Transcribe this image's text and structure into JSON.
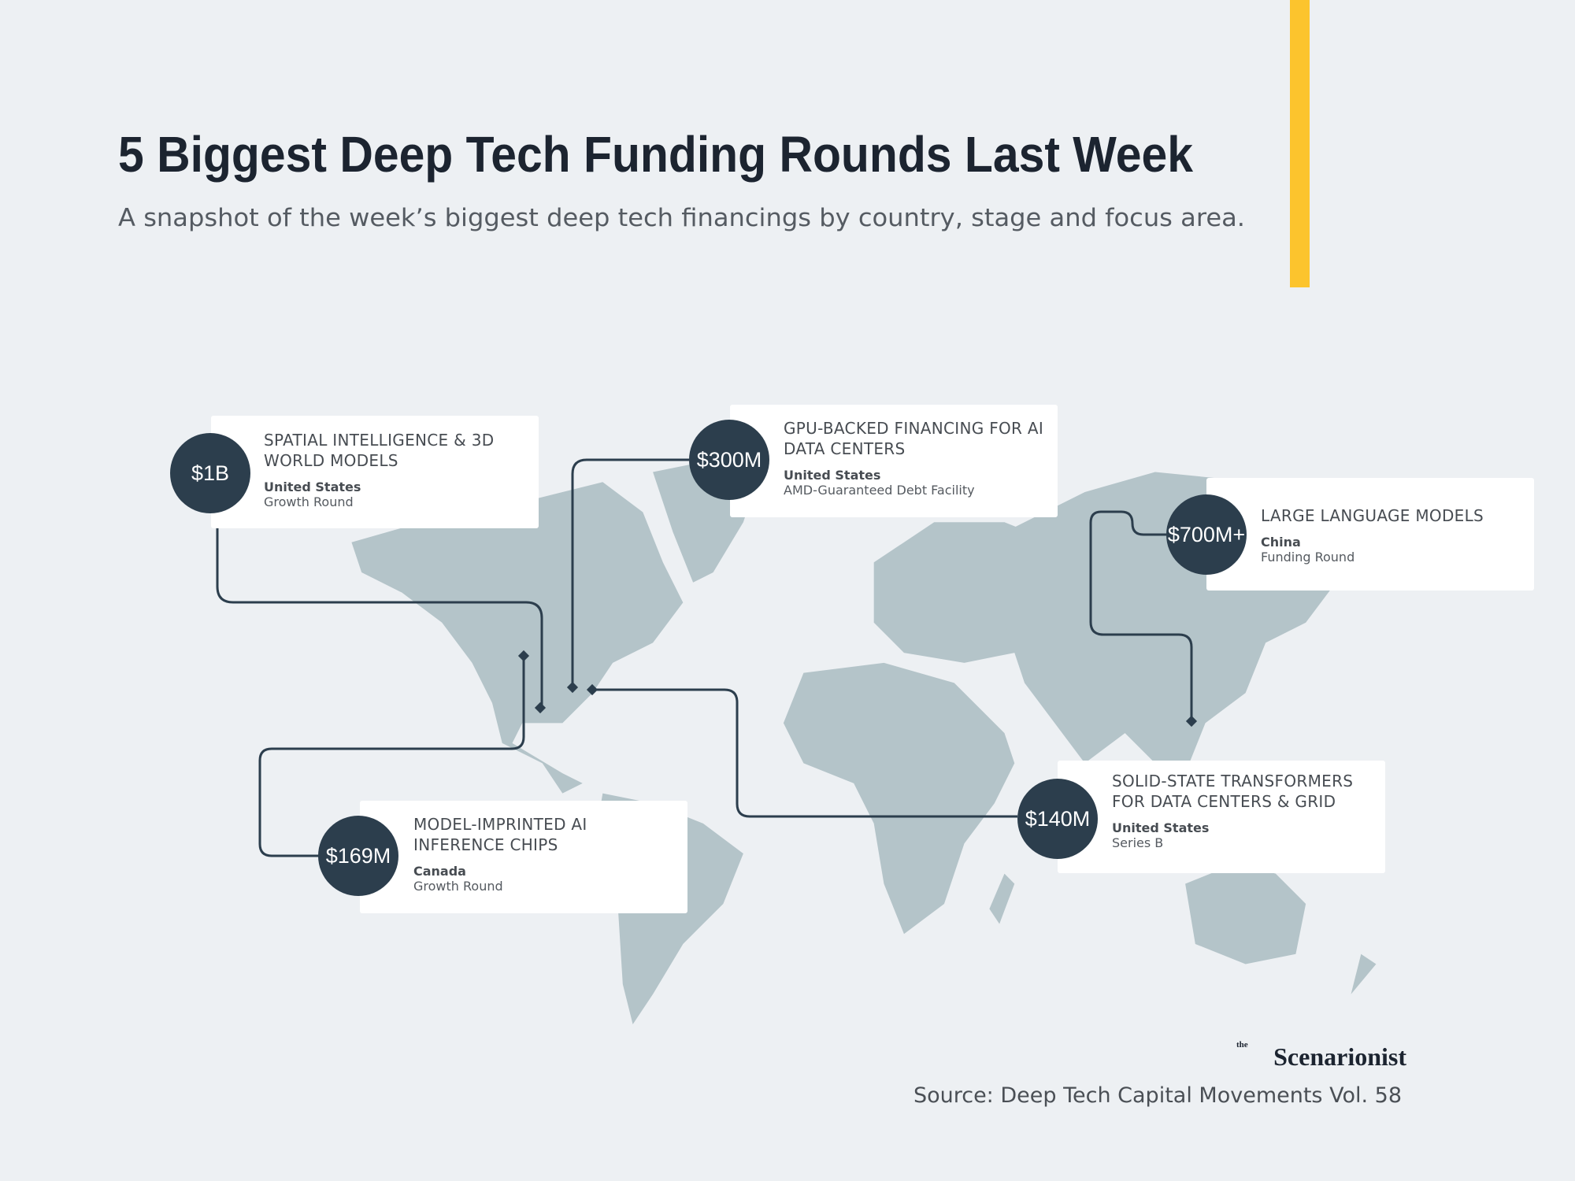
{
  "header": {
    "title": "5 Biggest Deep Tech Funding Rounds Last Week",
    "subtitle": "A snapshot of the week’s biggest deep tech financings by country, stage and focus area."
  },
  "rounds": [
    {
      "amount": "$1B",
      "focus": [
        "SPATIAL INTELLIGENCE & 3D",
        "WORLD MODELS"
      ],
      "country": "United States",
      "stage": "Growth Round"
    },
    {
      "amount": "$300M",
      "focus": [
        "GPU-BACKED FINANCING FOR AI",
        "DATA CENTERS"
      ],
      "country": "United States",
      "stage": "AMD-Guaranteed Debt Facility"
    },
    {
      "amount": "$700M+",
      "focus": [
        "LARGE LANGUAGE MODELS"
      ],
      "country": "China",
      "stage": "Funding Round"
    },
    {
      "amount": "$169M",
      "focus": [
        "MODEL-IMPRINTED AI",
        "INFERENCE CHIPS"
      ],
      "country": "Canada",
      "stage": "Growth Round"
    },
    {
      "amount": "$140M",
      "focus": [
        "SOLID-STATE TRANSFORMERS",
        "FOR DATA CENTERS & GRID"
      ],
      "country": "United States",
      "stage": "Series B"
    }
  ],
  "brand": {
    "prefix": "the",
    "name": "Scenarionist"
  },
  "source": "Source: Deep Tech Capital Movements Vol. 58"
}
